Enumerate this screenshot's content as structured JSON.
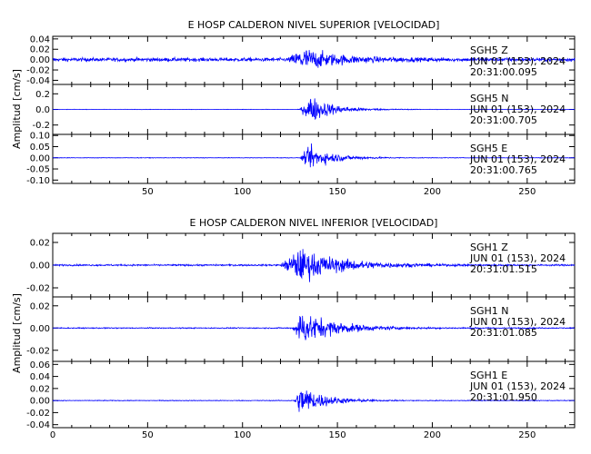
{
  "colors": {
    "trace": "#0000ff",
    "axis": "#000000",
    "background": "#ffffff"
  },
  "chart_data": [
    {
      "type": "line",
      "title": "E HOSP CALDERON NIVEL SUPERIOR [VELOCIDAD]",
      "ylabel": "Amplitud [cm/s]",
      "xlim": [
        0,
        275
      ],
      "xticks": [
        50,
        100,
        150,
        200,
        250
      ],
      "series": [
        {
          "name": "SGH5 Z",
          "info": [
            "SGH5   Z",
            "JUN 01 (153), 2024",
            "20:31:00.095"
          ],
          "ylim": [
            -0.048,
            0.045
          ],
          "yticks": [
            "0.04",
            "0.02",
            "0.00",
            "-0.02",
            "-0.04"
          ],
          "ytick_values": [
            0.04,
            0.02,
            0,
            -0.02,
            -0.04
          ],
          "noise": 0.006,
          "peak": 0.042,
          "onset": 124,
          "peak_time": 132,
          "decay": 18
        },
        {
          "name": "SGH5 N",
          "info": [
            "SGH5   N",
            "JUN 01 (153), 2024",
            "20:31:00.705"
          ],
          "ylim": [
            -0.32,
            0.32
          ],
          "yticks": [
            "0.2",
            "0.0",
            "-0.2"
          ],
          "ytick_values": [
            0.2,
            0,
            -0.2
          ],
          "noise": 0.004,
          "peak": 0.3,
          "onset": 130,
          "peak_time": 136,
          "decay": 12
        },
        {
          "name": "SGH5 E",
          "info": [
            "SGH5   E",
            "JUN 01 (153), 2024",
            "20:31:00.765"
          ],
          "ylim": [
            -0.115,
            0.105
          ],
          "yticks": [
            "0.10",
            "0.05",
            "0.00",
            "-0.05",
            "-0.10"
          ],
          "ytick_values": [
            0.1,
            0.05,
            0,
            -0.05,
            -0.1
          ],
          "noise": 0.002,
          "peak": 0.09,
          "onset": 130,
          "peak_time": 136,
          "decay": 12
        }
      ]
    },
    {
      "type": "line",
      "title": "E HOSP CALDERON NIVEL INFERIOR [VELOCIDAD]",
      "ylabel": "Amplitud [cm/s]",
      "xlim": [
        0,
        275
      ],
      "xticks": [
        0,
        50,
        100,
        150,
        200,
        250
      ],
      "series": [
        {
          "name": "SGH1 Z",
          "info": [
            "SGH1   Z",
            "JUN 01 (153), 2024",
            "20:31:01.515"
          ],
          "ylim": [
            -0.028,
            0.028
          ],
          "yticks": [
            "0.02",
            "0.00",
            "-0.02"
          ],
          "ytick_values": [
            0.02,
            0,
            -0.02
          ],
          "noise": 0.0012,
          "peak": 0.026,
          "onset": 120,
          "peak_time": 130,
          "decay": 22
        },
        {
          "name": "SGH1 N",
          "info": [
            "SGH1   N",
            "JUN 01 (153), 2024",
            "20:31:01.085"
          ],
          "ylim": [
            -0.03,
            0.028
          ],
          "yticks": [
            "0.02",
            "0.00",
            "-0.02"
          ],
          "ytick_values": [
            0.02,
            0,
            -0.02
          ],
          "noise": 0.0008,
          "peak": 0.027,
          "onset": 126,
          "peak_time": 131,
          "decay": 18
        },
        {
          "name": "SGH1 E",
          "info": [
            "SGH1   E",
            "JUN 01 (153), 2024",
            "20:31:01.950"
          ],
          "ylim": [
            -0.045,
            0.065
          ],
          "yticks": [
            "0.06",
            "0.04",
            "0.02",
            "0.00",
            "-0.02",
            "-0.04"
          ],
          "ytick_values": [
            0.06,
            0.04,
            0.02,
            0,
            -0.02,
            -0.04
          ],
          "noise": 0.001,
          "peak": 0.045,
          "onset": 127,
          "peak_time": 131,
          "decay": 12
        }
      ]
    }
  ]
}
